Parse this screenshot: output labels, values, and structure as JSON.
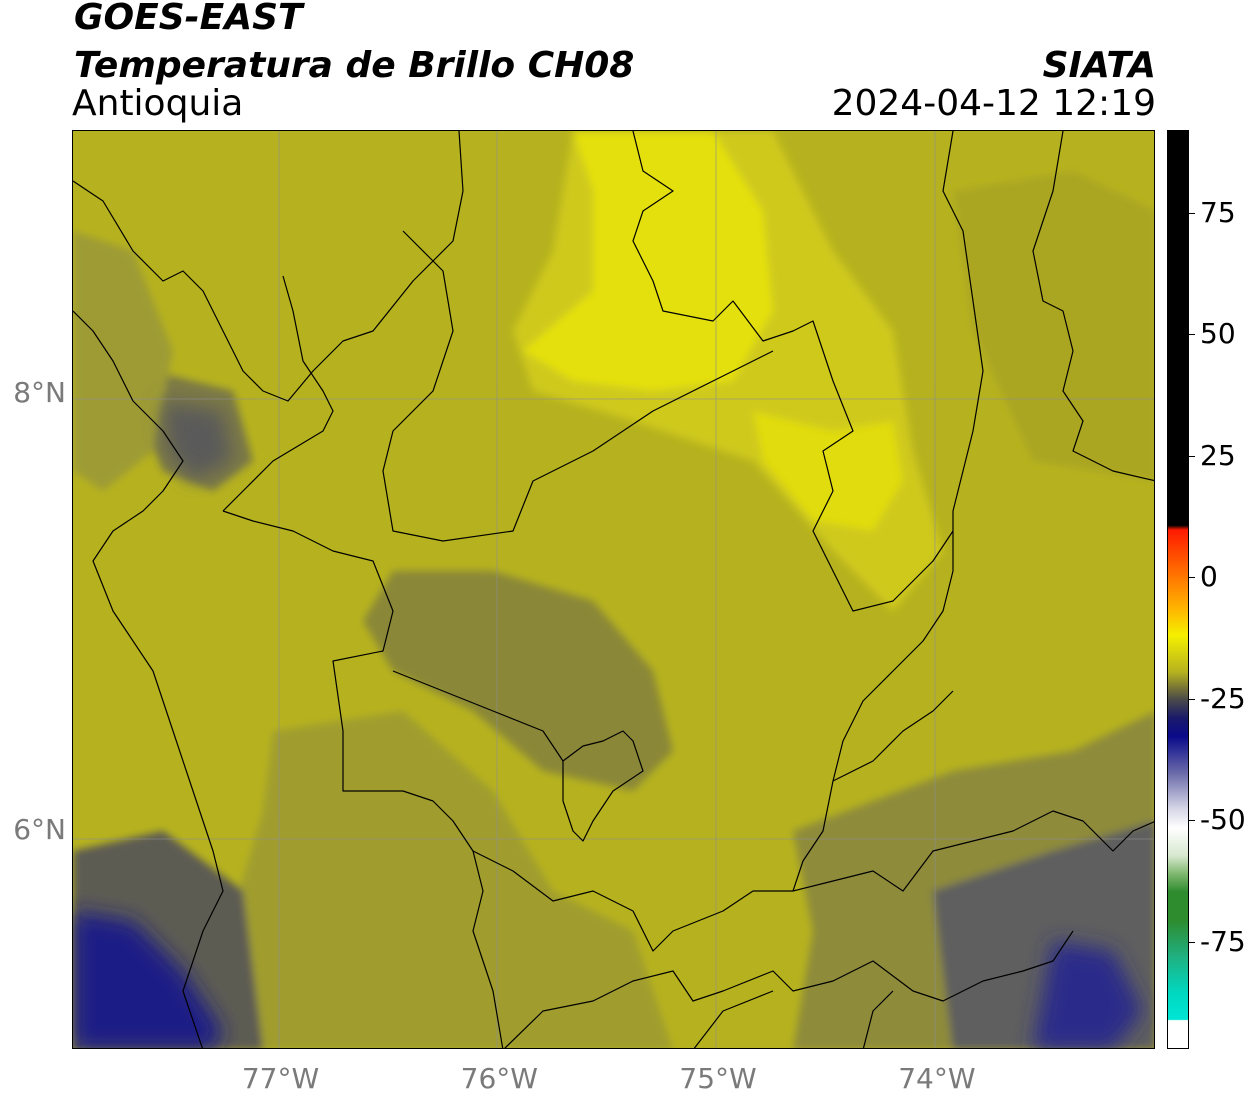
{
  "header": {
    "satellite": "GOES-EAST",
    "product": "Temperatura de Brillo CH08",
    "region": "Antioquia",
    "agency": "SIATA",
    "datetime": "2024-04-12 12:19"
  },
  "map": {
    "lon_range": [
      -77.95,
      -73.0
    ],
    "lat_range": [
      5.0,
      9.2
    ],
    "lon_ticks": [
      {
        "value": -77,
        "label": "77°W"
      },
      {
        "value": -76,
        "label": "76°W"
      },
      {
        "value": -75,
        "label": "75°W"
      },
      {
        "value": -74,
        "label": "74°W"
      }
    ],
    "lat_ticks": [
      {
        "value": 8,
        "label": "8°N"
      },
      {
        "value": 6,
        "label": "6°N"
      }
    ],
    "grid": true
  },
  "colorbar": {
    "range": [
      -97,
      92
    ],
    "ticks": [
      {
        "value": 75,
        "label": "75"
      },
      {
        "value": 50,
        "label": "50"
      },
      {
        "value": 25,
        "label": "25"
      },
      {
        "value": 0,
        "label": "0"
      },
      {
        "value": -25,
        "label": "-25"
      },
      {
        "value": -50,
        "label": "-50"
      },
      {
        "value": -75,
        "label": "-75"
      }
    ],
    "colors": {
      "black": "#000000",
      "red": "#ff1a00",
      "orange": "#ff8c00",
      "yellow": "#f5f000",
      "olive": "#6e6b3a",
      "navy": "#0a0a8a",
      "white": "#ffffff",
      "green": "#2e8b2e",
      "cyan": "#00e5d5"
    }
  }
}
